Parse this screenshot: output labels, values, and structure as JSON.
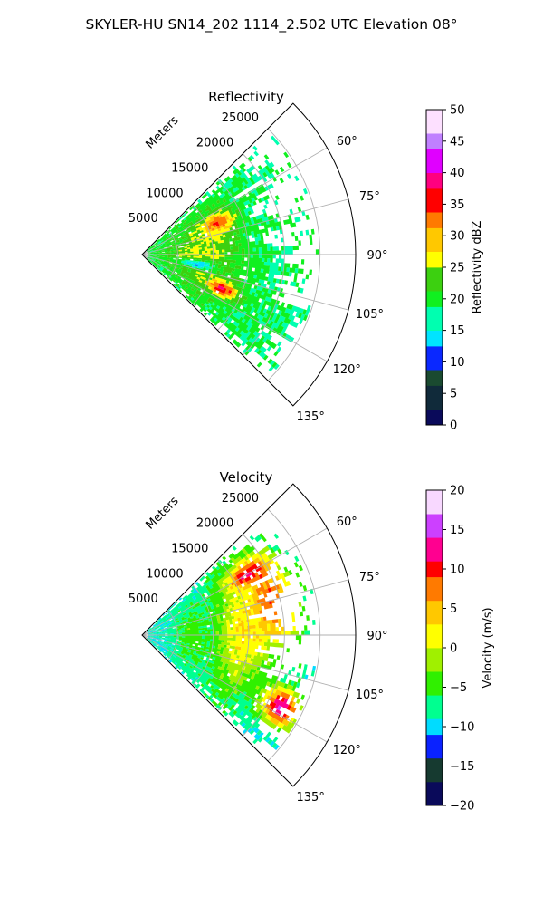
{
  "figure": {
    "title": "SKYLER-HU  SN14_202  1114_2.502 UTC Elevation 08°"
  },
  "chart_data": [
    {
      "type": "heatmap",
      "title": "Reflectivity",
      "projection": "polar sector",
      "radial_label": "Meters",
      "radial_ticks": [
        5000,
        10000,
        15000,
        20000,
        25000
      ],
      "radial_tick_labels": [
        "5000",
        "10000",
        "15000",
        "20000",
        "25000"
      ],
      "rmax": 30000,
      "angle_range_deg": [
        45,
        135
      ],
      "angle_ticks": [
        60,
        75,
        90,
        105,
        120,
        135
      ],
      "angle_tick_labels": [
        "60°",
        "75°",
        "90°",
        "105°",
        "120°",
        "135°"
      ],
      "grid": true,
      "colorbar": {
        "label": "Reflectivity dBZ",
        "range": [
          0,
          50
        ],
        "ticks": [
          "0",
          "5",
          "10",
          "15",
          "20",
          "25",
          "30",
          "35",
          "40",
          "45",
          "50"
        ]
      },
      "value_range": [
        0,
        50
      ],
      "field_features": [
        {
          "feature": "background",
          "r_m": [
            2000,
            25000
          ],
          "az_deg": [
            48,
            132
          ],
          "value": 19
        },
        {
          "feature": "near-range band",
          "r_m": [
            3000,
            14000
          ],
          "az_deg": [
            55,
            125
          ],
          "value": 26
        },
        {
          "feature": "core",
          "r_m": [
            9000,
            14000
          ],
          "az_deg": [
            60,
            75
          ],
          "value": 34
        },
        {
          "feature": "core",
          "r_m": [
            10000,
            14500
          ],
          "az_deg": [
            108,
            118
          ],
          "value": 38
        },
        {
          "feature": "minimum",
          "r_m": [
            5000,
            11000
          ],
          "az_deg": [
            95,
            105
          ],
          "value": 13
        }
      ]
    },
    {
      "type": "heatmap",
      "title": "Velocity",
      "projection": "polar sector",
      "radial_label": "Meters",
      "radial_ticks": [
        5000,
        10000,
        15000,
        20000,
        25000
      ],
      "radial_tick_labels": [
        "5000",
        "10000",
        "15000",
        "20000",
        "25000"
      ],
      "rmax": 30000,
      "angle_range_deg": [
        45,
        135
      ],
      "angle_ticks": [
        60,
        75,
        90,
        105,
        120,
        135
      ],
      "angle_tick_labels": [
        "60°",
        "75°",
        "90°",
        "105°",
        "120°",
        "135°"
      ],
      "grid": true,
      "colorbar": {
        "label": "Velocity (m/s)",
        "range": [
          -20,
          20
        ],
        "ticks": [
          "−20",
          "−15",
          "−10",
          "−5",
          "0",
          "5",
          "10",
          "15",
          "20"
        ]
      },
      "value_range": [
        -20,
        20
      ],
      "field_features": [
        {
          "feature": "near-range",
          "r_m": [
            0,
            4000
          ],
          "az_deg": [
            60,
            120
          ],
          "value": -9
        },
        {
          "feature": "transition",
          "r_m": [
            4000,
            10000
          ],
          "az_deg": [
            50,
            130
          ],
          "value": -4
        },
        {
          "feature": "middle band",
          "r_m": [
            10000,
            18000
          ],
          "az_deg": [
            50,
            130
          ],
          "value": 2
        },
        {
          "feature": "outer band",
          "r_m": [
            15000,
            23000
          ],
          "az_deg": [
            50,
            100
          ],
          "value": 8
        },
        {
          "feature": "maximum",
          "r_m": [
            14000,
            20000
          ],
          "az_deg": [
            55,
            65
          ],
          "value": 12
        },
        {
          "feature": "maximum",
          "r_m": [
            19000,
            25000
          ],
          "az_deg": [
            110,
            125
          ],
          "value": 15
        }
      ]
    }
  ],
  "colormaps": {
    "reflectivity": [
      "#0a0a5a",
      "#102a3a",
      "#1a4a30",
      "#0a28ff",
      "#00e4ff",
      "#00ffb0",
      "#10f020",
      "#3cd010",
      "#ffff00",
      "#ffc800",
      "#ff7a00",
      "#ff0000",
      "#ff0080",
      "#e000ff",
      "#c080ff",
      "#fde0ff"
    ],
    "velocity": [
      "#0a0a5a",
      "#163a30",
      "#0a22ff",
      "#00dcff",
      "#00ff90",
      "#30f000",
      "#a0f000",
      "#ffff00",
      "#ffc800",
      "#ff7a00",
      "#ff0000",
      "#ff0090",
      "#cc40ff",
      "#f8d8ff"
    ]
  }
}
